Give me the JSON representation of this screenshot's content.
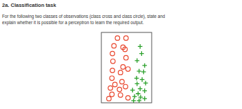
{
  "heading": "2a. Classification task",
  "question": [
    "For the following two classes of observations (class cross and class circle), state and",
    "explain whether it is possible for a perceptron to learn the required output."
  ],
  "chart_data": {
    "type": "scatter",
    "tick_labels": false,
    "xlim": [
      0,
      100
    ],
    "ylim": [
      0,
      100
    ],
    "series": [
      {
        "color": "#e8452c",
        "marker": "circle",
        "x": [
          32,
          49,
          25,
          43,
          22,
          47,
          49,
          23,
          43,
          22,
          38,
          53,
          21,
          41,
          27,
          18,
          36,
          48,
          21,
          38,
          15,
          53
        ],
        "y": [
          92,
          92,
          81,
          79,
          70,
          76,
          64,
          59,
          51,
          46,
          43,
          48,
          35,
          30,
          26,
          21,
          19,
          23,
          12,
          11,
          6,
          7
        ]
      },
      {
        "color": "#2aa02a",
        "marker": "cross",
        "x": [
          77,
          80,
          71,
          86,
          75,
          84,
          70,
          81,
          71,
          88,
          62,
          77,
          73,
          86,
          66,
          78,
          64,
          86,
          75
        ],
        "y": [
          80,
          70,
          60,
          53,
          45,
          44,
          35,
          33,
          27,
          28,
          18,
          20,
          13,
          17,
          9,
          8,
          3,
          6,
          3
        ]
      }
    ]
  }
}
